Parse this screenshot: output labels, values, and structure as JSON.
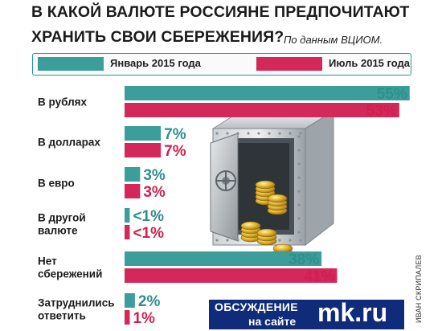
{
  "title_line1": "В КАКОЙ ВАЛЮТЕ РОССИЯНЕ ПРЕДПОЧИТАЮТ",
  "title_line2": "ХРАНИТЬ СВОИ СБЕРЕЖЕНИЯ?",
  "source": "По данным ВЦИОМ.",
  "colors": {
    "series1": "#3b9e9a",
    "series2": "#d4275a",
    "value1": "#2f8f8c",
    "value2": "#d02050"
  },
  "chart_data": {
    "type": "bar",
    "orientation": "horizontal",
    "categories": [
      [
        "В рублях"
      ],
      [
        "В долларах"
      ],
      [
        "В евро"
      ],
      [
        "В другой",
        "валюте"
      ],
      [
        "Нет",
        "сбережений"
      ],
      [
        "Затруднились",
        "ответить"
      ]
    ],
    "series": [
      {
        "name": "Январь 2015 года",
        "values": [
          55,
          7,
          3,
          1,
          38,
          2
        ],
        "labels": [
          "55%",
          "7%",
          "3%",
          "<1%",
          "38%",
          "2%"
        ]
      },
      {
        "name": "Июль 2015 года",
        "values": [
          53,
          7,
          3,
          1,
          41,
          1
        ],
        "labels": [
          "53%",
          "7%",
          "3%",
          "<1%",
          "41%",
          "1%"
        ]
      }
    ],
    "legend": "top"
  },
  "site_banner": {
    "line1": "ОБСУЖДЕНИЕ",
    "line2": "на сайте",
    "logo": "mk.ru"
  },
  "credit": "ИВАН СКРИПАЛЕВ"
}
